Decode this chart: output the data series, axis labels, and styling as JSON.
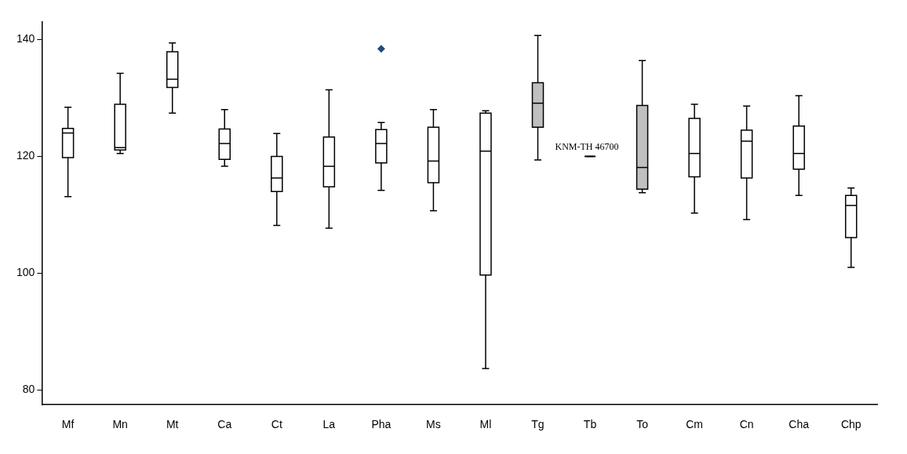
{
  "chart_data": {
    "type": "box",
    "categories": [
      "Mf",
      "Mn",
      "Mt",
      "Ca",
      "Ct",
      "La",
      "Pha",
      "Ms",
      "Ml",
      "Tg",
      "Tb",
      "To",
      "Cm",
      "Cn",
      "Cha",
      "Chp"
    ],
    "boxes": [
      {
        "low": 113.1,
        "q1": 119.8,
        "median": 124.0,
        "q3": 124.8,
        "high": 128.4
      },
      {
        "low": 120.5,
        "q1": 121.1,
        "median": 121.5,
        "q3": 128.9,
        "high": 134.2
      },
      {
        "low": 127.4,
        "q1": 131.8,
        "median": 133.2,
        "q3": 137.9,
        "high": 139.4
      },
      {
        "low": 118.3,
        "q1": 119.5,
        "median": 122.2,
        "q3": 124.7,
        "high": 128.0
      },
      {
        "low": 108.2,
        "q1": 114.0,
        "median": 116.3,
        "q3": 120.0,
        "high": 123.9
      },
      {
        "low": 107.7,
        "q1": 114.8,
        "median": 118.3,
        "q3": 123.3,
        "high": 131.4
      },
      {
        "low": 114.2,
        "q1": 118.9,
        "median": 122.2,
        "q3": 124.6,
        "high": 125.8,
        "outliers": [
          138.4
        ]
      },
      {
        "low": 110.7,
        "q1": 115.5,
        "median": 119.2,
        "q3": 125.0,
        "high": 128.0
      },
      {
        "low": 83.7,
        "q1": 99.7,
        "median": 120.9,
        "q3": 127.4,
        "high": 127.8
      },
      {
        "low": 119.4,
        "q1": 125.0,
        "median": 129.1,
        "q3": 132.6,
        "high": 140.7
      },
      {
        "low": 120.0,
        "q1": 120.0,
        "median": 120.0,
        "q3": 120.0,
        "high": 120.0
      },
      {
        "low": 113.8,
        "q1": 114.4,
        "median": 118.1,
        "q3": 128.7,
        "high": 136.4
      },
      {
        "low": 110.3,
        "q1": 116.5,
        "median": 120.5,
        "q3": 126.5,
        "high": 128.9
      },
      {
        "low": 109.2,
        "q1": 116.3,
        "median": 122.6,
        "q3": 124.5,
        "high": 128.6
      },
      {
        "low": 113.3,
        "q1": 117.8,
        "median": 120.5,
        "q3": 125.2,
        "high": 130.4
      },
      {
        "low": 101.0,
        "q1": 106.1,
        "median": 111.6,
        "q3": 113.3,
        "high": 114.6
      }
    ],
    "colors": [
      "#ffffff",
      "#ffffff",
      "#ffffff",
      "#ffffff",
      "#ffffff",
      "#ffffff",
      "#ffffff",
      "#ffffff",
      "#ffffff",
      "#c0c0c0",
      "#000000",
      "#c0c0c0",
      "#ffffff",
      "#ffffff",
      "#ffffff",
      "#ffffff"
    ],
    "marker": "diamond",
    "ylim": [
      77.5,
      143
    ],
    "yticks": [
      80,
      100,
      120,
      140
    ],
    "annotations": [
      {
        "text": "KNM-TH 46700",
        "x": "Tb",
        "y": 120
      }
    ]
  }
}
